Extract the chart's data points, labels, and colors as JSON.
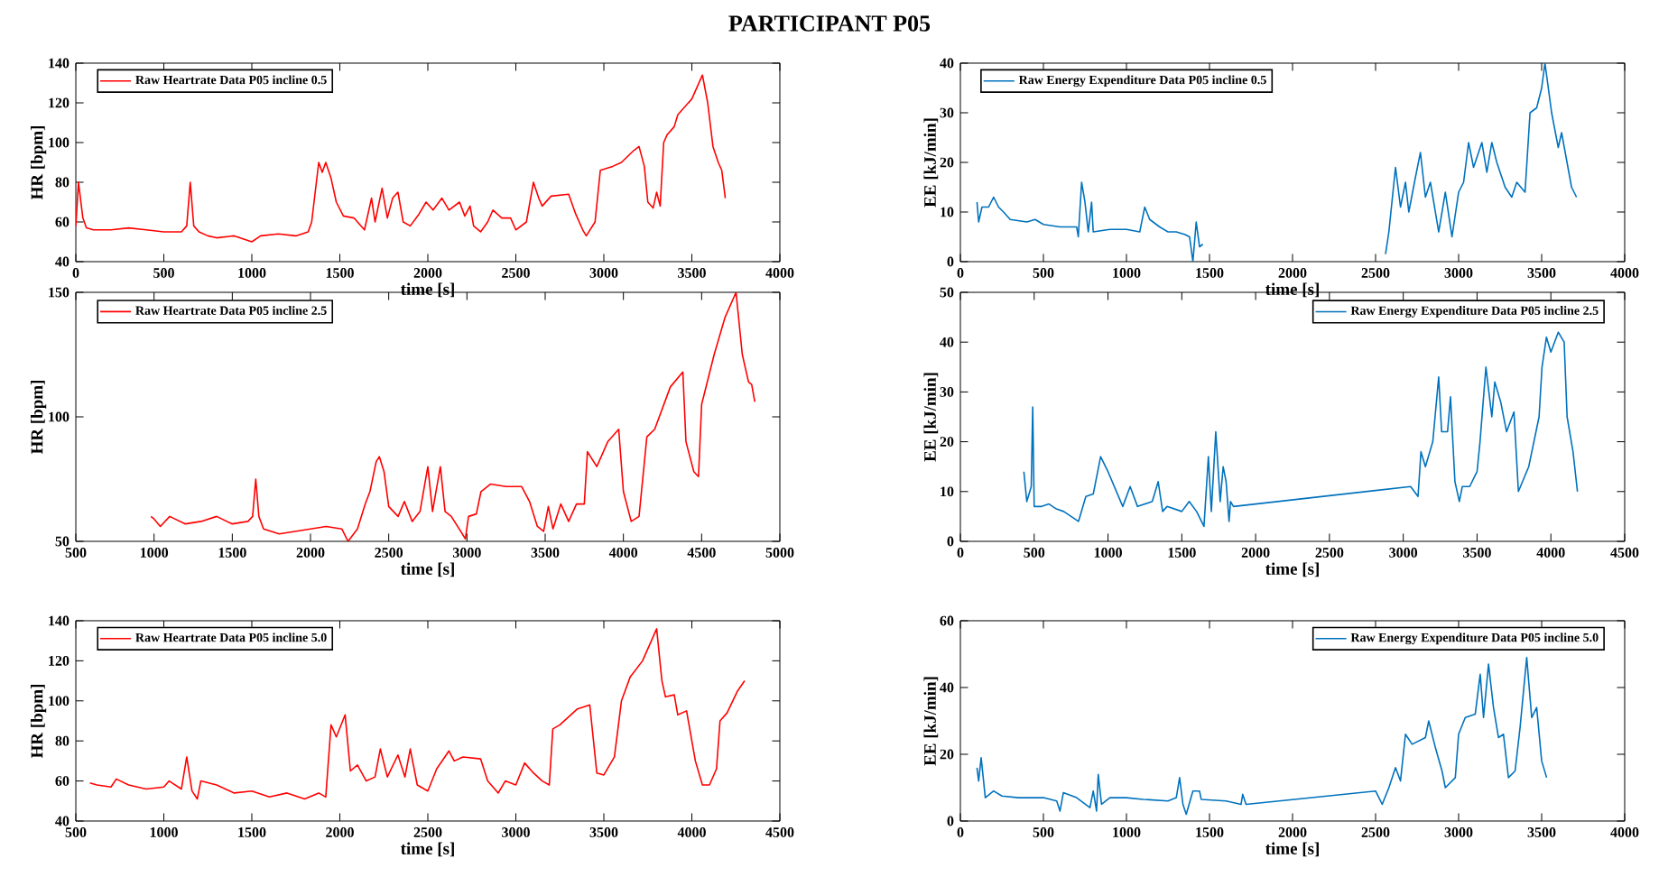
{
  "chart_data": [
    {
      "type": "line",
      "title": "PARTICIPANT P05",
      "xlabel": "time [s]",
      "ylabel": "HR [bpm]",
      "xlim": [
        0,
        4000
      ],
      "ylim": [
        40,
        140
      ],
      "xticks": [
        0,
        500,
        1000,
        1500,
        2000,
        2500,
        3000,
        3500,
        4000
      ],
      "yticks": [
        40,
        60,
        80,
        100,
        120,
        140
      ],
      "legend": "top left",
      "x": [
        0,
        15,
        40,
        60,
        100,
        200,
        300,
        400,
        500,
        600,
        630,
        650,
        670,
        700,
        750,
        800,
        900,
        1000,
        1050,
        1150,
        1250,
        1320,
        1340,
        1380,
        1400,
        1420,
        1450,
        1480,
        1520,
        1580,
        1640,
        1680,
        1700,
        1740,
        1770,
        1800,
        1830,
        1860,
        1900,
        1950,
        1990,
        2030,
        2080,
        2120,
        2180,
        2210,
        2240,
        2260,
        2300,
        2340,
        2370,
        2420,
        2470,
        2500,
        2560,
        2600,
        2630,
        2650,
        2700,
        2800,
        2840,
        2880,
        2900,
        2950,
        2980,
        3050,
        3100,
        3170,
        3200,
        3230,
        3250,
        3280,
        3300,
        3320,
        3340,
        3360,
        3400,
        3420,
        3500,
        3560,
        3590,
        3620,
        3650,
        3670,
        3690
      ],
      "series": [
        {
          "name": "Raw Heartrate Data P05 incline 0.5",
          "color": "#ff0000",
          "values": [
            58,
            80,
            62,
            57,
            56,
            56,
            57,
            56,
            55,
            55,
            58,
            80,
            58,
            55,
            53,
            52,
            53,
            50,
            53,
            54,
            53,
            55,
            60,
            90,
            85,
            90,
            82,
            70,
            63,
            62,
            56,
            72,
            60,
            77,
            62,
            72,
            75,
            60,
            58,
            64,
            70,
            66,
            72,
            66,
            70,
            63,
            68,
            58,
            55,
            60,
            66,
            62,
            62,
            56,
            60,
            80,
            72,
            68,
            73,
            74,
            64,
            56,
            53,
            60,
            86,
            88,
            90,
            96,
            98,
            88,
            70,
            67,
            75,
            68,
            100,
            104,
            108,
            114,
            122,
            134,
            120,
            98,
            90,
            86,
            72
          ]
        }
      ]
    },
    {
      "type": "line",
      "xlabel": "time [s]",
      "ylabel": "EE [kJ/min]",
      "xlim": [
        0,
        4000
      ],
      "ylim": [
        0,
        40
      ],
      "xticks": [
        0,
        500,
        1000,
        1500,
        2000,
        2500,
        3000,
        3500,
        4000
      ],
      "yticks": [
        0,
        10,
        20,
        30,
        40
      ],
      "legend": "top left",
      "x": [
        100,
        110,
        130,
        170,
        200,
        230,
        260,
        300,
        400,
        450,
        500,
        600,
        650,
        700,
        710,
        730,
        750,
        770,
        790,
        800,
        900,
        1000,
        1080,
        1110,
        1140,
        1200,
        1250,
        1300,
        1350,
        1380,
        1400,
        1420,
        1440,
        1460,
        2000,
        2560,
        2580,
        2620,
        2650,
        2680,
        2700,
        2740,
        2770,
        2800,
        2830,
        2880,
        2920,
        2960,
        3000,
        3030,
        3060,
        3090,
        3140,
        3170,
        3200,
        3230,
        3280,
        3320,
        3350,
        3400,
        3430,
        3470,
        3500,
        3520,
        3560,
        3600,
        3620,
        3680,
        3710
      ],
      "series": [
        {
          "name": "Raw Energy Expenditure Data P05 incline 0.5",
          "color": "#0072bd",
          "values": [
            12,
            8,
            11,
            11,
            13,
            11,
            10,
            8.5,
            8,
            8.5,
            7.5,
            7,
            7,
            7,
            5,
            16,
            12,
            6,
            12,
            6,
            6.5,
            6.5,
            6,
            11,
            8.5,
            7,
            6,
            6,
            5.5,
            5,
            0,
            8,
            3,
            3.5,
            null,
            1.5,
            6,
            19,
            11,
            16,
            10,
            17,
            22,
            13,
            16,
            6,
            14,
            5,
            14,
            16,
            24,
            19,
            24,
            18,
            24,
            20,
            15,
            13,
            16,
            14,
            30,
            31,
            35,
            40,
            30,
            23,
            26,
            15,
            13
          ]
        }
      ]
    },
    {
      "type": "line",
      "xlabel": "time [s]",
      "ylabel": "HR [bpm]",
      "xlim": [
        500,
        5000
      ],
      "ylim": [
        50,
        150
      ],
      "xticks": [
        500,
        1000,
        1500,
        2000,
        2500,
        3000,
        3500,
        4000,
        4500,
        5000
      ],
      "yticks": [
        50,
        100,
        150
      ],
      "legend": "top left",
      "x": [
        980,
        1000,
        1040,
        1100,
        1200,
        1300,
        1400,
        1500,
        1600,
        1630,
        1650,
        1670,
        1700,
        1800,
        1900,
        2000,
        2100,
        2200,
        2240,
        2300,
        2350,
        2380,
        2420,
        2440,
        2470,
        2500,
        2560,
        2600,
        2650,
        2700,
        2750,
        2780,
        2830,
        2860,
        2900,
        2950,
        2990,
        3010,
        3060,
        3090,
        3150,
        3250,
        3350,
        3400,
        3450,
        3490,
        3520,
        3550,
        3600,
        3650,
        3700,
        3750,
        3770,
        3830,
        3900,
        3970,
        4000,
        4050,
        4100,
        4150,
        4200,
        4300,
        4380,
        4400,
        4450,
        4480,
        4500,
        4580,
        4650,
        4720,
        4760,
        4800,
        4820,
        4840
      ],
      "series": [
        {
          "name": "Raw Heartrate Data P05 incline 2.5",
          "color": "#ff0000",
          "values": [
            60,
            59,
            56,
            60,
            57,
            58,
            60,
            57,
            58,
            60,
            75,
            60,
            55,
            53,
            54,
            55,
            56,
            55,
            50,
            55,
            65,
            70,
            82,
            84,
            78,
            64,
            60,
            66,
            58,
            62,
            80,
            62,
            80,
            62,
            60,
            55,
            51,
            60,
            61,
            70,
            73,
            72,
            72,
            66,
            56,
            54,
            64,
            55,
            65,
            58,
            65,
            65,
            86,
            80,
            90,
            95,
            70,
            58,
            60,
            92,
            95,
            112,
            118,
            90,
            78,
            76,
            105,
            125,
            140,
            150,
            125,
            114,
            113,
            106
          ]
        }
      ]
    },
    {
      "type": "line",
      "xlabel": "time [s]",
      "ylabel": "EE [kJ/min]",
      "xlim": [
        0,
        4500
      ],
      "ylim": [
        0,
        50
      ],
      "xticks": [
        0,
        500,
        1000,
        1500,
        2000,
        2500,
        3000,
        3500,
        4000,
        4500
      ],
      "yticks": [
        0,
        10,
        20,
        30,
        40,
        50
      ],
      "legend": "top right",
      "x": [
        430,
        450,
        480,
        490,
        500,
        550,
        600,
        650,
        700,
        800,
        850,
        900,
        950,
        1000,
        1100,
        1150,
        1200,
        1300,
        1340,
        1370,
        1400,
        1500,
        1550,
        1600,
        1650,
        1680,
        1700,
        1730,
        1760,
        1780,
        1800,
        1820,
        1830,
        1850,
        3050,
        3100,
        3120,
        3150,
        3200,
        3240,
        3260,
        3300,
        3320,
        3350,
        3380,
        3400,
        3450,
        3500,
        3520,
        3560,
        3600,
        3620,
        3660,
        3700,
        3750,
        3780,
        3850,
        3920,
        3940,
        3970,
        4000,
        4050,
        4090,
        4110,
        4150,
        4180
      ],
      "series": [
        {
          "name": "Raw Energy Expenditure Data P05 incline 2.5",
          "color": "#0072bd",
          "values": [
            14,
            8,
            11,
            27,
            7,
            7,
            7.5,
            6.5,
            6,
            4,
            9,
            9.5,
            17,
            14,
            7,
            11,
            7,
            8,
            12,
            6,
            7,
            6,
            8,
            6,
            3,
            17,
            6,
            22,
            8,
            15,
            12,
            4,
            8,
            7,
            11,
            9,
            18,
            15,
            20,
            33,
            22,
            22,
            29,
            12,
            8,
            11,
            11,
            14,
            20,
            35,
            25,
            32,
            28,
            22,
            26,
            10,
            15,
            25,
            35,
            41,
            38,
            42,
            40,
            25,
            18,
            10
          ]
        }
      ]
    },
    {
      "type": "line",
      "xlabel": "time [s]",
      "ylabel": "HR [bpm]",
      "xlim": [
        500,
        4500
      ],
      "ylim": [
        40,
        140
      ],
      "xticks": [
        500,
        1000,
        1500,
        2000,
        2500,
        3000,
        3500,
        4000,
        4500
      ],
      "yticks": [
        40,
        60,
        80,
        100,
        120,
        140
      ],
      "legend": "top left",
      "x": [
        580,
        620,
        700,
        730,
        800,
        900,
        1000,
        1030,
        1100,
        1130,
        1160,
        1190,
        1210,
        1300,
        1400,
        1500,
        1600,
        1700,
        1800,
        1880,
        1920,
        1950,
        1980,
        2030,
        2060,
        2100,
        2150,
        2200,
        2230,
        2270,
        2330,
        2370,
        2400,
        2440,
        2500,
        2550,
        2620,
        2650,
        2700,
        2800,
        2840,
        2900,
        2940,
        3000,
        3050,
        3100,
        3150,
        3190,
        3210,
        3250,
        3350,
        3420,
        3460,
        3500,
        3560,
        3600,
        3650,
        3720,
        3800,
        3830,
        3850,
        3900,
        3920,
        3970,
        4020,
        4060,
        4100,
        4140,
        4160,
        4200,
        4260,
        4300
      ],
      "series": [
        {
          "name": "Raw Heartrate Data P05 incline 5.0",
          "color": "#ff0000",
          "values": [
            59,
            58,
            57,
            61,
            58,
            56,
            57,
            60,
            56,
            72,
            55,
            51,
            60,
            58,
            54,
            55,
            52,
            54,
            51,
            54,
            52,
            88,
            82,
            93,
            65,
            68,
            60,
            62,
            76,
            62,
            73,
            62,
            76,
            58,
            55,
            66,
            75,
            70,
            72,
            71,
            60,
            54,
            60,
            58,
            69,
            64,
            60,
            58,
            86,
            88,
            96,
            98,
            64,
            63,
            72,
            100,
            112,
            120,
            136,
            110,
            102,
            103,
            93,
            95,
            70,
            58,
            58,
            66,
            90,
            94,
            105,
            110
          ]
        }
      ]
    },
    {
      "type": "line",
      "xlabel": "time [s]",
      "ylabel": "EE [kJ/min]",
      "xlim": [
        0,
        4000
      ],
      "ylim": [
        0,
        60
      ],
      "xticks": [
        0,
        500,
        1000,
        1500,
        2000,
        2500,
        3000,
        3500,
        4000
      ],
      "yticks": [
        0,
        20,
        40,
        60
      ],
      "legend": "top right",
      "x": [
        100,
        110,
        125,
        150,
        200,
        250,
        350,
        500,
        580,
        600,
        620,
        700,
        780,
        800,
        820,
        830,
        850,
        900,
        1000,
        1100,
        1250,
        1300,
        1320,
        1340,
        1360,
        1400,
        1440,
        1450,
        1600,
        1690,
        1700,
        1720,
        2500,
        2540,
        2580,
        2620,
        2650,
        2680,
        2720,
        2800,
        2820,
        2860,
        2900,
        2920,
        2980,
        3000,
        3040,
        3100,
        3130,
        3150,
        3180,
        3210,
        3240,
        3270,
        3300,
        3340,
        3370,
        3410,
        3440,
        3470,
        3500,
        3530
      ],
      "series": [
        {
          "name": "Raw Energy Expenditure Data P05 incline 5.0",
          "color": "#0072bd",
          "values": [
            16,
            12,
            19,
            7,
            9,
            7.5,
            7,
            7,
            6,
            3,
            8.5,
            7,
            4,
            9,
            3,
            14,
            5,
            7,
            7,
            6.5,
            6,
            7,
            13,
            5,
            2,
            9,
            9,
            6.5,
            6,
            5,
            8,
            5,
            9,
            5,
            10,
            16,
            12,
            26,
            23,
            25,
            30,
            22,
            15,
            10,
            13,
            26,
            31,
            32,
            44,
            31,
            47,
            34,
            25,
            26,
            13,
            15,
            28,
            49,
            31,
            34,
            18,
            13
          ]
        }
      ]
    }
  ]
}
